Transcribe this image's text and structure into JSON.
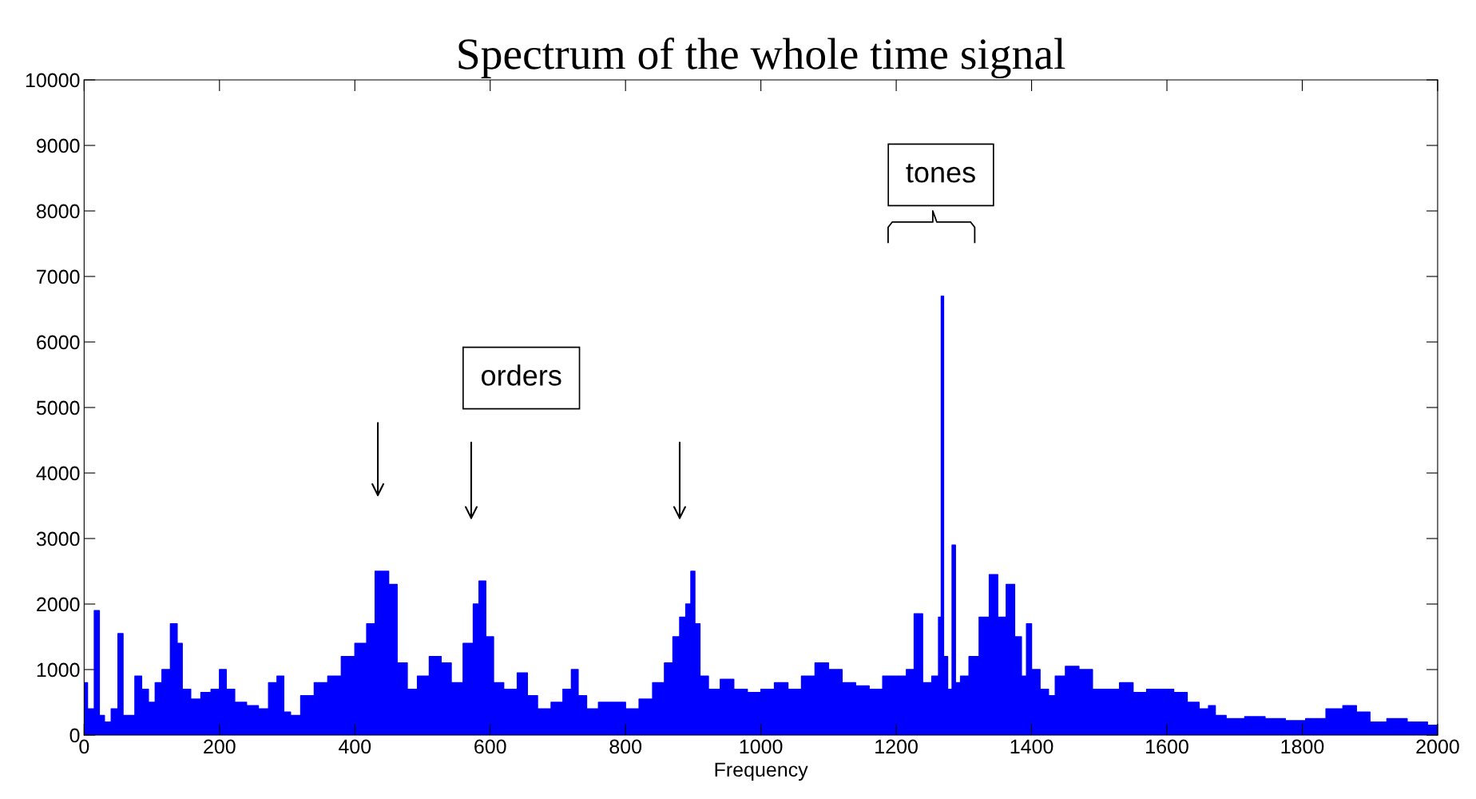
{
  "chart_data": {
    "type": "area",
    "title": "Spectrum of the whole time signal",
    "xlabel": "Frequency",
    "annotations": [
      "orders",
      "tones"
    ],
    "xlim": [
      0,
      2000
    ],
    "xticks": [
      0,
      200,
      400,
      600,
      800,
      1000,
      1200,
      1400,
      1600,
      1800,
      2000
    ],
    "ylim": [
      0,
      10000
    ],
    "yticks": [
      0,
      1000,
      2000,
      3000,
      4000,
      5000,
      6000,
      7000,
      8000,
      9000,
      10000
    ],
    "grid": false,
    "legend": false,
    "series": [
      {
        "color": "#0000ff",
        "x": [
          0,
          10,
          20,
          25,
          35,
          45,
          55,
          60,
          70,
          80,
          90,
          100,
          110,
          120,
          135,
          140,
          150,
          165,
          180,
          195,
          205,
          215,
          230,
          250,
          265,
          280,
          290,
          300,
          310,
          330,
          350,
          370,
          390,
          410,
          425,
          435,
          445,
          455,
          470,
          485,
          500,
          520,
          535,
          550,
          570,
          580,
          587,
          600,
          610,
          630,
          650,
          660,
          680,
          700,
          715,
          725,
          735,
          750,
          770,
          790,
          810,
          830,
          850,
          865,
          875,
          885,
          893,
          900,
          905,
          915,
          930,
          950,
          970,
          990,
          1010,
          1030,
          1050,
          1070,
          1090,
          1110,
          1130,
          1150,
          1170,
          1190,
          1210,
          1220,
          1233,
          1245,
          1260,
          1265,
          1268,
          1272,
          1280,
          1285,
          1290,
          1300,
          1315,
          1330,
          1345,
          1355,
          1370,
          1380,
          1390,
          1395,
          1405,
          1420,
          1430,
          1440,
          1460,
          1480,
          1500,
          1520,
          1540,
          1560,
          1580,
          1600,
          1620,
          1640,
          1655,
          1668,
          1675,
          1700,
          1730,
          1760,
          1790,
          1820,
          1850,
          1870,
          1890,
          1910,
          1940,
          1970,
          2000
        ],
        "values": [
          800,
          400,
          1900,
          300,
          200,
          400,
          1550,
          300,
          300,
          900,
          700,
          500,
          800,
          1000,
          1700,
          1400,
          700,
          550,
          650,
          700,
          1000,
          700,
          500,
          450,
          400,
          800,
          900,
          350,
          300,
          600,
          800,
          900,
          1200,
          1400,
          1700,
          2500,
          2500,
          2300,
          1100,
          700,
          900,
          1200,
          1100,
          800,
          1400,
          2000,
          2350,
          1500,
          800,
          700,
          950,
          600,
          400,
          500,
          700,
          1000,
          600,
          400,
          500,
          500,
          400,
          550,
          800,
          1100,
          1500,
          1800,
          2000,
          2500,
          1700,
          900,
          700,
          850,
          700,
          650,
          700,
          800,
          700,
          900,
          1100,
          1000,
          800,
          750,
          700,
          900,
          900,
          1000,
          1850,
          800,
          900,
          1800,
          6700,
          1200,
          700,
          2900,
          800,
          900,
          1200,
          1800,
          2450,
          1800,
          2300,
          1500,
          900,
          1700,
          1000,
          700,
          600,
          900,
          1050,
          1000,
          700,
          700,
          800,
          650,
          700,
          700,
          650,
          500,
          400,
          450,
          300,
          250,
          280,
          250,
          220,
          250,
          400,
          450,
          350,
          200,
          250,
          200,
          150
        ]
      }
    ]
  }
}
